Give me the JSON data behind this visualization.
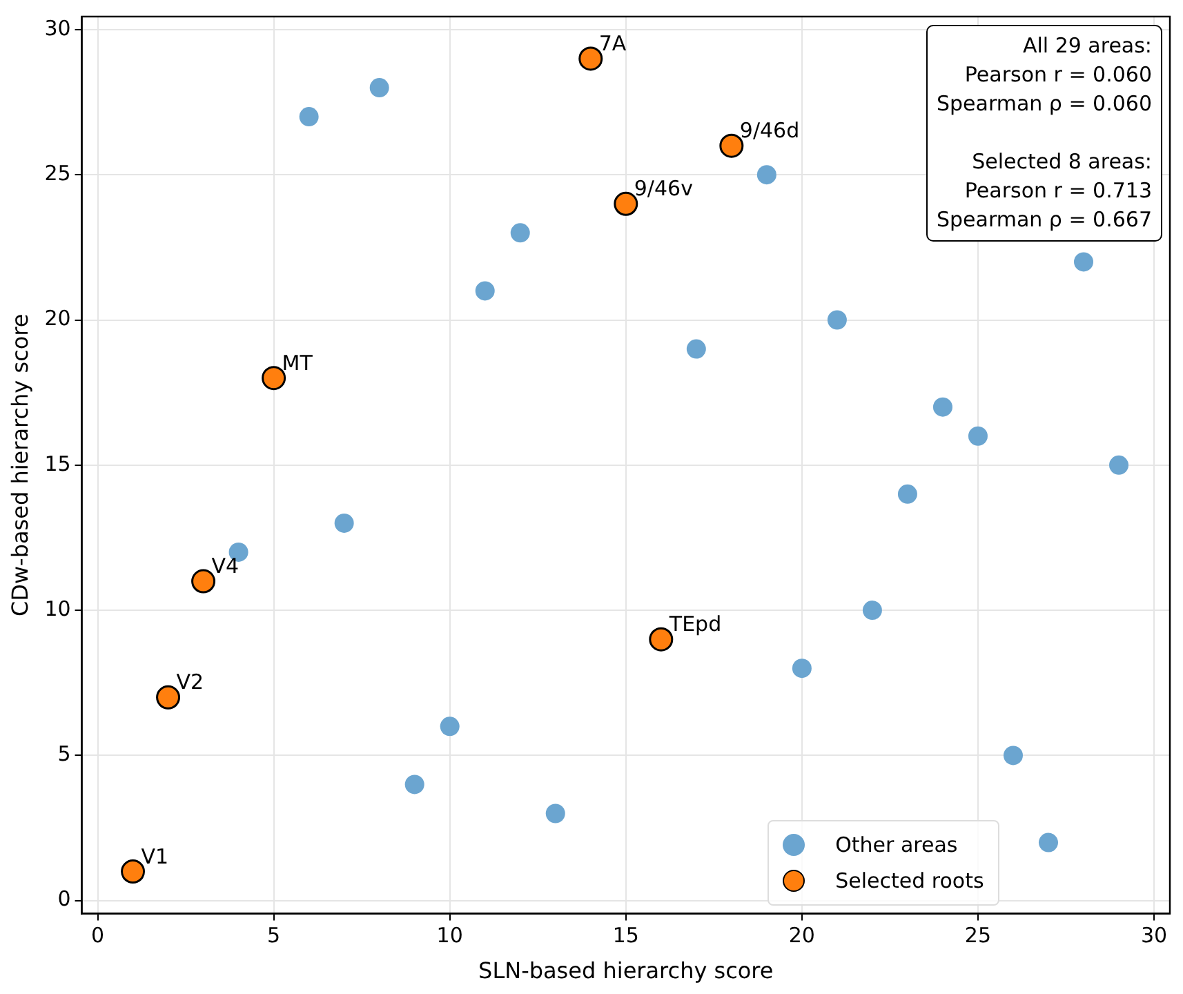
{
  "chart_data": {
    "type": "scatter",
    "xlabel": "SLN-based hierarchy score",
    "ylabel": "CDw-based hierarchy score",
    "xlim": [
      -0.45,
      30.45
    ],
    "xticks": [
      0,
      5,
      10,
      15,
      20,
      25,
      30
    ],
    "ylim": [
      -0.45,
      30.45
    ],
    "yticks": [
      0,
      5,
      10,
      15,
      20,
      25,
      30
    ],
    "grid": true,
    "legend": "bottom right",
    "marker": "circle",
    "series": [
      {
        "name": "Other areas",
        "color": "#6ba5d0",
        "x": [
          6,
          8,
          19,
          12,
          11,
          21,
          17,
          28,
          24,
          25,
          29,
          23,
          7,
          4,
          22,
          20,
          10,
          26,
          9,
          13,
          27
        ],
        "values": [
          27,
          28,
          25,
          23,
          21,
          20,
          19,
          22,
          17,
          16,
          15,
          14,
          13,
          12,
          10,
          8,
          6,
          5,
          4,
          3,
          2
        ]
      },
      {
        "name": "Selected roots",
        "color": "#ff7f0e",
        "x": [
          1,
          2,
          3,
          5,
          14,
          18,
          15,
          16
        ],
        "values": [
          1,
          7,
          11,
          18,
          29,
          26,
          24,
          9
        ]
      }
    ],
    "annotations": [
      "All 29 areas:\nPearson r = 0.060\nSpearman ρ = 0.060",
      "Selected 8 areas:\nPearson r = 0.713\nSpearman ρ = 0.667",
      {
        "text": "V1",
        "x": 1,
        "y": 1
      },
      {
        "text": "V2",
        "x": 2,
        "y": 7
      },
      {
        "text": "V4",
        "x": 3,
        "y": 11
      },
      {
        "text": "MT",
        "x": 5,
        "y": 18
      },
      {
        "text": "7A",
        "x": 14,
        "y": 29
      },
      {
        "text": "9/46d",
        "x": 18,
        "y": 26
      },
      {
        "text": "9/46v",
        "x": 15,
        "y": 24
      },
      {
        "text": "TEpd",
        "x": 16,
        "y": 9
      }
    ]
  }
}
